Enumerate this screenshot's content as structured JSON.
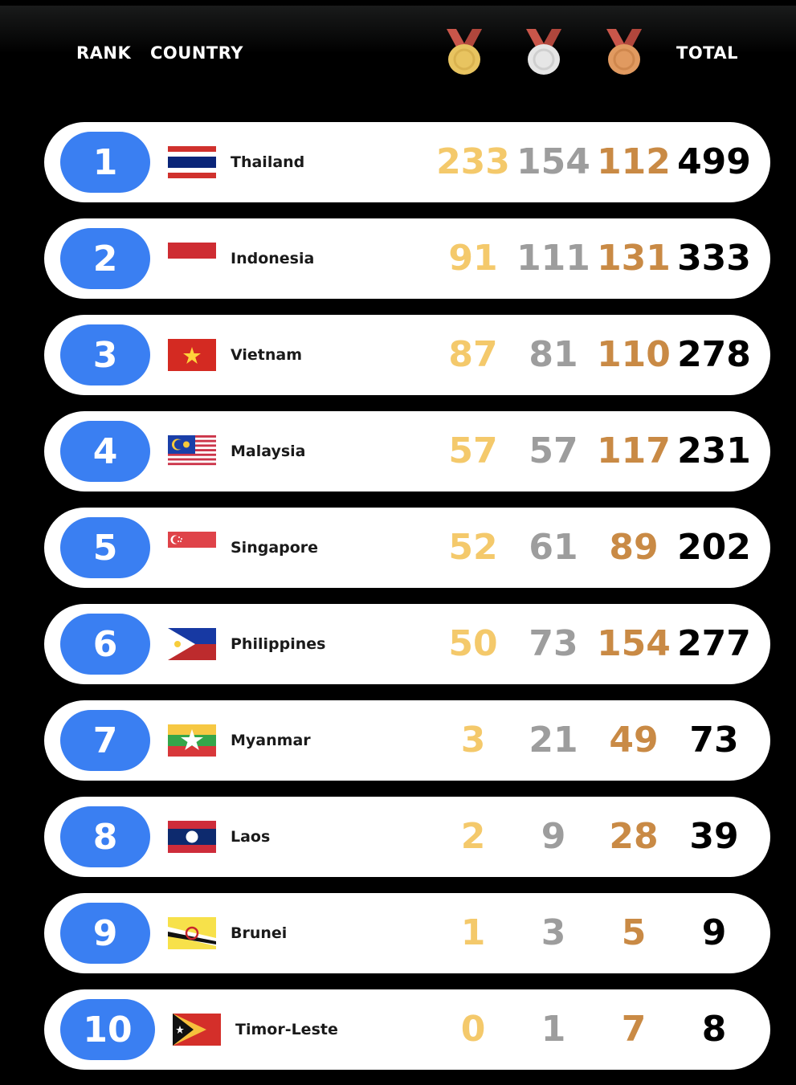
{
  "header": {
    "rank": "RANK",
    "country": "COUNTRY",
    "total": "TOTAL",
    "medals": [
      "gold-medal-icon",
      "silver-medal-icon",
      "bronze-medal-icon"
    ]
  },
  "colors": {
    "rank_pill": "#3a7ff2",
    "gold": "#f4c96b",
    "silver": "#9d9d9d",
    "bronze": "#c98a45",
    "total": "#000000"
  },
  "rows": [
    {
      "rank": "1",
      "country": "Thailand",
      "flag": "thailand-flag-icon",
      "gold": "233",
      "silver": "154",
      "bronze": "112",
      "total": "499"
    },
    {
      "rank": "2",
      "country": "Indonesia",
      "flag": "indonesia-flag-icon",
      "gold": "91",
      "silver": "111",
      "bronze": "131",
      "total": "333"
    },
    {
      "rank": "3",
      "country": "Vietnam",
      "flag": "vietnam-flag-icon",
      "gold": "87",
      "silver": "81",
      "bronze": "110",
      "total": "278"
    },
    {
      "rank": "4",
      "country": "Malaysia",
      "flag": "malaysia-flag-icon",
      "gold": "57",
      "silver": "57",
      "bronze": "117",
      "total": "231"
    },
    {
      "rank": "5",
      "country": "Singapore",
      "flag": "singapore-flag-icon",
      "gold": "52",
      "silver": "61",
      "bronze": "89",
      "total": "202"
    },
    {
      "rank": "6",
      "country": "Philippines",
      "flag": "philippines-flag-icon",
      "gold": "50",
      "silver": "73",
      "bronze": "154",
      "total": "277"
    },
    {
      "rank": "7",
      "country": "Myanmar",
      "flag": "myanmar-flag-icon",
      "gold": "3",
      "silver": "21",
      "bronze": "49",
      "total": "73"
    },
    {
      "rank": "8",
      "country": "Laos",
      "flag": "laos-flag-icon",
      "gold": "2",
      "silver": "9",
      "bronze": "28",
      "total": "39"
    },
    {
      "rank": "9",
      "country": "Brunei",
      "flag": "brunei-flag-icon",
      "gold": "1",
      "silver": "3",
      "bronze": "5",
      "total": "9"
    },
    {
      "rank": "10",
      "country": "Timor-Leste",
      "flag": "timor-leste-flag-icon",
      "gold": "0",
      "silver": "1",
      "bronze": "7",
      "total": "8"
    }
  ]
}
